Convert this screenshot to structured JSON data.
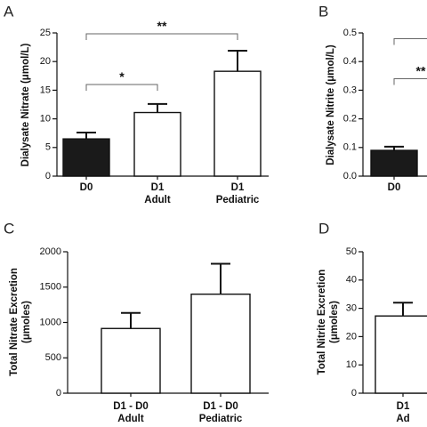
{
  "chart_data": [
    {
      "panel": "A",
      "type": "bar",
      "ylabel": "Dialysate Nitrate (μmol/L)",
      "ylim": [
        0,
        25
      ],
      "yticks": [
        "0",
        "5",
        "10",
        "15",
        "20",
        "25"
      ],
      "categories": [
        [
          "D0"
        ],
        [
          "D1",
          "Adult"
        ],
        [
          "D1",
          "Pediatric"
        ]
      ],
      "values": [
        6.5,
        11.1,
        18.3
      ],
      "errors": [
        1.1,
        1.5,
        3.6
      ],
      "colors": [
        "#1a1a1a",
        "#ffffff",
        "#ffffff"
      ],
      "significance": [
        {
          "from": 0,
          "to": 1,
          "label": "*"
        },
        {
          "from": 0,
          "to": 2,
          "label": "**"
        }
      ]
    },
    {
      "panel": "B",
      "type": "bar",
      "ylabel": "Dialysate Nitrite (μmol/L)",
      "ylim": [
        0,
        0.5
      ],
      "yticks": [
        "0.0",
        "0.1",
        "0.2",
        "0.3",
        "0.4",
        "0.5"
      ],
      "categories": [
        [
          "D0"
        ]
      ],
      "values": [
        0.09
      ],
      "errors": [
        0.013
      ],
      "colors": [
        "#1a1a1a"
      ],
      "significance": [
        {
          "from": 0,
          "level": 0.34,
          "label": "**"
        }
      ]
    },
    {
      "panel": "C",
      "type": "bar",
      "ylabel": [
        "Total Nitrate Excretion",
        "(μmoles)"
      ],
      "ylim": [
        0,
        2000
      ],
      "yticks": [
        "0",
        "500",
        "1000",
        "1500",
        "2000"
      ],
      "categories": [
        [
          "D1 - D0",
          "Adult"
        ],
        [
          "D1 - D0",
          "Pediatric"
        ]
      ],
      "values": [
        915,
        1400
      ],
      "errors": [
        220,
        430
      ],
      "colors": [
        "#ffffff",
        "#ffffff"
      ]
    },
    {
      "panel": "D",
      "type": "bar",
      "ylabel": [
        "Total Nitrite Excretion",
        "(μmoles)"
      ],
      "ylim": [
        0,
        50
      ],
      "yticks": [
        "0",
        "10",
        "20",
        "30",
        "40",
        "50"
      ],
      "categories": [
        [
          "D1",
          "Ad"
        ]
      ],
      "values": [
        27.3
      ],
      "errors": [
        4.7
      ],
      "colors": [
        "#ffffff"
      ]
    }
  ]
}
